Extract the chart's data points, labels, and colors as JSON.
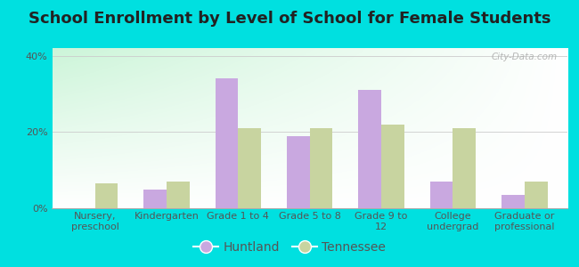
{
  "title": "School Enrollment by Level of School for Female Students",
  "categories": [
    "Nursery,\npreschool",
    "Kindergarten",
    "Grade 1 to 4",
    "Grade 5 to 8",
    "Grade 9 to\n12",
    "College\nundergrad",
    "Graduate or\nprofessional"
  ],
  "huntland": [
    0.0,
    5.0,
    34.0,
    19.0,
    31.0,
    7.0,
    3.5
  ],
  "tennessee": [
    6.5,
    7.0,
    21.0,
    21.0,
    22.0,
    21.0,
    7.0
  ],
  "huntland_color": "#c9a8e0",
  "tennessee_color": "#c8d4a0",
  "background_outer": "#00e0e0",
  "ylim": [
    0,
    42
  ],
  "yticks": [
    0,
    20,
    40
  ],
  "ytick_labels": [
    "0%",
    "20%",
    "40%"
  ],
  "watermark": "City-Data.com",
  "legend_huntland": "Huntland",
  "legend_tennessee": "Tennessee",
  "title_fontsize": 13,
  "tick_fontsize": 8,
  "legend_fontsize": 10
}
